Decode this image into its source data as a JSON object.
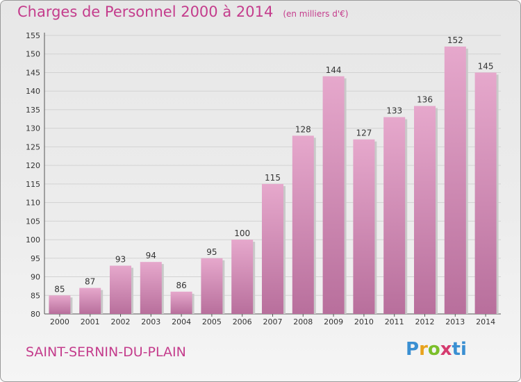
{
  "title": "Charges de Personnel 2000 à 2014",
  "unit_note": "(en milliers d'€)",
  "commune": "SAINT-SERNIN-DU-PLAIN",
  "logo": {
    "p": "P",
    "r": "r",
    "o": "o",
    "x": "x",
    "i": "i",
    "ti": "ti"
  },
  "colors": {
    "accent": "#c43c8c",
    "bar_top": "#e6a8cc",
    "bar_bottom": "#b86f9c"
  },
  "chart_data": {
    "type": "bar",
    "title": "Charges de Personnel 2000 à 2014",
    "categories": [
      "2000",
      "2001",
      "2002",
      "2003",
      "2004",
      "2005",
      "2006",
      "2007",
      "2008",
      "2009",
      "2010",
      "2011",
      "2012",
      "2013",
      "2014"
    ],
    "values": [
      85,
      87,
      93,
      94,
      86,
      95,
      100,
      115,
      128,
      144,
      127,
      133,
      136,
      152,
      145
    ],
    "ylim": [
      80,
      155
    ],
    "yticks": [
      80,
      85,
      90,
      95,
      100,
      105,
      110,
      115,
      120,
      125,
      130,
      135,
      140,
      145,
      150,
      155
    ],
    "grid": true
  }
}
